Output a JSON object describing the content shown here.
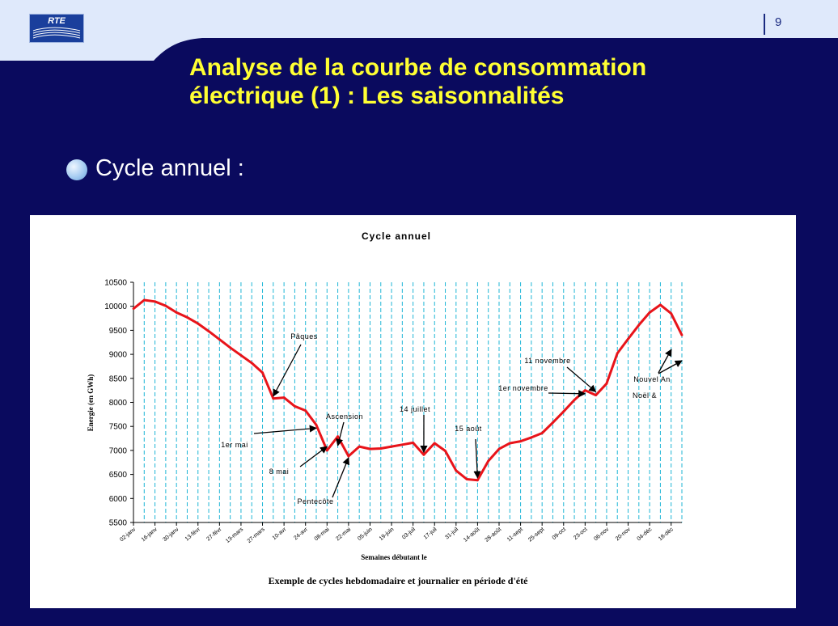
{
  "logo": {
    "text": "RTE"
  },
  "page_number": "9",
  "slide": {
    "title_line1": "Analyse de la courbe de consommation",
    "title_line2": "électrique (1) : Les saisonnalités",
    "bullet": "Cycle annuel :"
  },
  "colors": {
    "background": "#0a0a5e",
    "title": "#ffff33",
    "line": "#e8141a",
    "grid": "#1fb6d6"
  },
  "chart_data": {
    "type": "line",
    "title": "Cycle annuel",
    "xlabel": "Semaines débutant le",
    "ylabel": "Energie (en GWh)",
    "caption": "Exemple de cycles hebdomadaire et journalier en période d'été",
    "ylim": [
      5500,
      10500
    ],
    "yticks": [
      5500,
      6000,
      6500,
      7000,
      7500,
      8000,
      8500,
      9000,
      9500,
      10000,
      10500
    ],
    "grid": "vertical dashed lines at each week",
    "x_tick_labels": [
      "02-janv",
      "16-janv",
      "30-janv",
      "13-févr",
      "27-févr",
      "13-mars",
      "27-mars",
      "10-avr",
      "24-avr",
      "08-mai",
      "22-mai",
      "05-juin",
      "19-juin",
      "03-juil",
      "17-juil",
      "31-juil",
      "14-août",
      "28-août",
      "11-sept",
      "25-sept",
      "09-oct",
      "23-oct",
      "06-nov",
      "20-nov",
      "04-déc",
      "18-déc"
    ],
    "series": [
      {
        "values": [
          9950,
          10130,
          10100,
          10010,
          9870,
          9770,
          9640,
          9480,
          9310,
          9140,
          8980,
          8820,
          8620,
          8080,
          8100,
          7920,
          7830,
          7530,
          7000,
          7290,
          6880,
          7080,
          7030,
          7040,
          7080,
          7120,
          7160,
          6910,
          7150,
          6990,
          6580,
          6400,
          6380,
          6780,
          7030,
          7150,
          7190,
          7270,
          7360,
          7580,
          7810,
          8050,
          8250,
          8150,
          8390,
          9020,
          9320,
          9610,
          9870,
          10030,
          9850,
          9400
        ]
      }
    ],
    "annotations": [
      {
        "label": "Pâques",
        "week": 13,
        "value": 8080
      },
      {
        "label": "1er mai",
        "week": 17,
        "value": 7430
      },
      {
        "label": "8  mai",
        "week": 18,
        "value": 7080
      },
      {
        "label": "Ascension",
        "week": 19,
        "value": 7100
      },
      {
        "label": "Pentecôte",
        "week": 20,
        "value": 6880
      },
      {
        "label": "14 juillet",
        "week": 27,
        "value": 6910
      },
      {
        "label": "15 août",
        "week": 32,
        "value": 6380
      },
      {
        "label": "1er novembre",
        "week": 42,
        "value": 8180
      },
      {
        "label": "11 novembre",
        "week": 43,
        "value": 8220
      },
      {
        "label": "Nouvel An",
        "week": 51,
        "value": 9140
      },
      {
        "label": "Noël &",
        "week": 51,
        "value": 8910
      }
    ]
  }
}
